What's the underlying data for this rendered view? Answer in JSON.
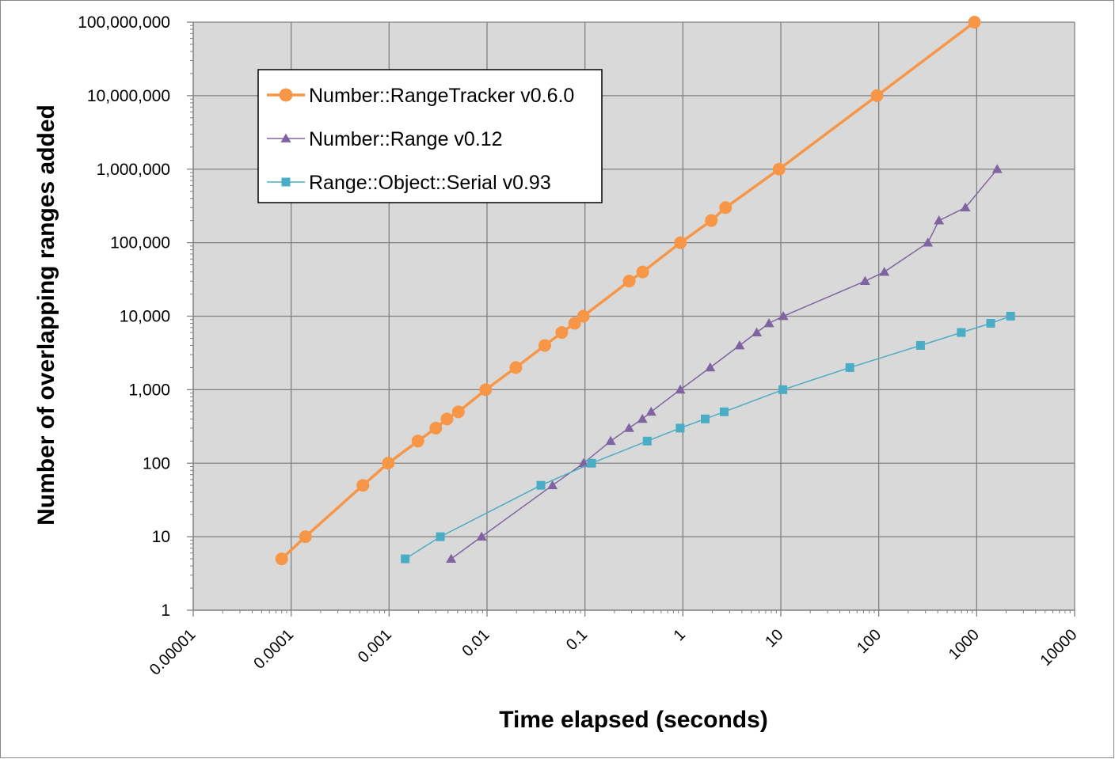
{
  "chart_data": {
    "type": "scatter",
    "title": "",
    "xlabel": "Time elapsed (seconds)",
    "ylabel": "Number of overlapping ranges added",
    "xscale": "log",
    "yscale": "log",
    "xlim": [
      1e-05,
      10000
    ],
    "ylim": [
      1,
      100000000
    ],
    "grid": true,
    "legend_position": "top-left",
    "x_tick_labels": [
      "0.00001",
      "0.0001",
      "0.001",
      "0.01",
      "0.1",
      "1",
      "10",
      "100",
      "1000",
      "10000"
    ],
    "y_tick_labels": [
      "1",
      "10",
      "100",
      "1,000",
      "10,000",
      "100,000",
      "1,000,000",
      "10,000,000",
      "100,000,000"
    ],
    "series": [
      {
        "name": "Number::RangeTracker v0.6.0",
        "color": "#f79646",
        "marker": "circle",
        "points": [
          [
            8e-05,
            5
          ],
          [
            0.00014,
            10
          ],
          [
            0.00054,
            50
          ],
          [
            0.00098,
            100
          ],
          [
            0.00197,
            200
          ],
          [
            0.003,
            300
          ],
          [
            0.0039,
            400
          ],
          [
            0.0051,
            500
          ],
          [
            0.0097,
            1000
          ],
          [
            0.0197,
            2000
          ],
          [
            0.0389,
            4000
          ],
          [
            0.058,
            6000
          ],
          [
            0.0785,
            8000
          ],
          [
            0.0963,
            10000
          ],
          [
            0.283,
            30000
          ],
          [
            0.389,
            40000
          ],
          [
            0.945,
            100000
          ],
          [
            1.95,
            200000
          ],
          [
            2.73,
            300000
          ],
          [
            9.6,
            1000000
          ],
          [
            96,
            10000000
          ],
          [
            950,
            100000000
          ]
        ]
      },
      {
        "name": "Number::Range v0.12",
        "color": "#8064a2",
        "marker": "triangle",
        "points": [
          [
            0.0043,
            5
          ],
          [
            0.0088,
            10
          ],
          [
            0.0466,
            50
          ],
          [
            0.0966,
            100
          ],
          [
            0.183,
            200
          ],
          [
            0.282,
            300
          ],
          [
            0.386,
            400
          ],
          [
            0.474,
            500
          ],
          [
            0.94,
            1000
          ],
          [
            1.9,
            2000
          ],
          [
            3.79,
            4000
          ],
          [
            5.68,
            6000
          ],
          [
            7.57,
            8000
          ],
          [
            10.6,
            10000
          ],
          [
            72.5,
            30000
          ],
          [
            114,
            40000
          ],
          [
            317,
            100000
          ],
          [
            412,
            200000
          ],
          [
            767,
            300000
          ],
          [
            1620,
            1000000
          ]
        ]
      },
      {
        "name": "Range::Object::Serial v0.93",
        "color": "#4bacc6",
        "marker": "square",
        "points": [
          [
            0.00146,
            5
          ],
          [
            0.00334,
            10
          ],
          [
            0.0355,
            50
          ],
          [
            0.117,
            100
          ],
          [
            0.432,
            200
          ],
          [
            0.938,
            300
          ],
          [
            1.69,
            400
          ],
          [
            2.64,
            500
          ],
          [
            10.5,
            1000
          ],
          [
            50.7,
            2000
          ],
          [
            267,
            4000
          ],
          [
            696,
            6000
          ],
          [
            1390,
            8000
          ],
          [
            2220,
            10000
          ]
        ]
      }
    ]
  }
}
